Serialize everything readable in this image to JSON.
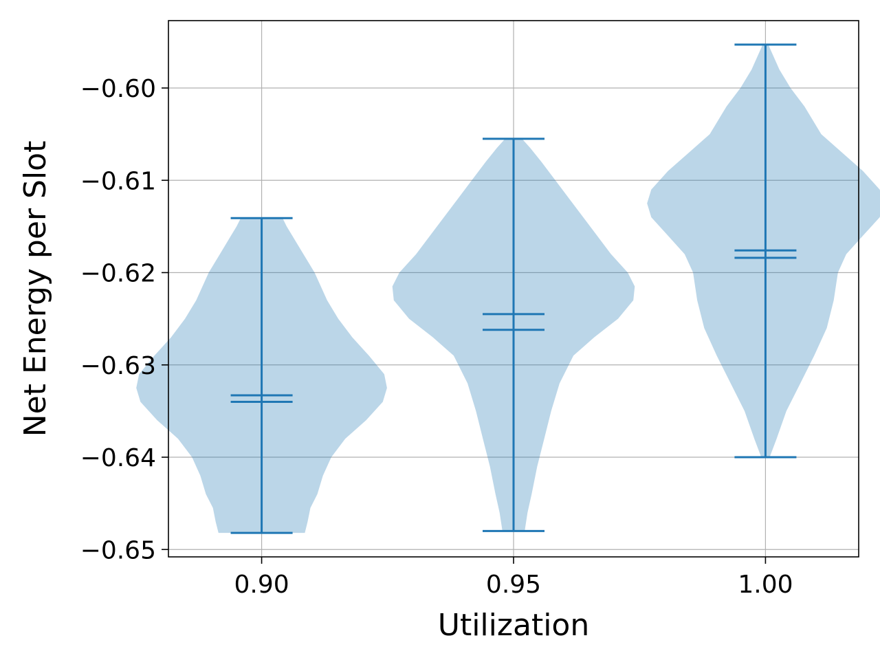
{
  "chart_data": {
    "type": "violin",
    "xlabel": "Utilization",
    "ylabel": "Net Energy per Slot",
    "xlim": [
      0.8815,
      1.0185
    ],
    "ylim": [
      -0.6508,
      -0.5927
    ],
    "grid": true,
    "accent_color": "#1f77b4",
    "body_color": "#1f77b4",
    "body_opacity": 0.3,
    "x_ticks": [
      {
        "value": 0.9,
        "label": "0.90"
      },
      {
        "value": 0.95,
        "label": "0.95"
      },
      {
        "value": 1.0,
        "label": "1.00"
      }
    ],
    "y_ticks": [
      {
        "value": -0.6,
        "label": "−0.60"
      },
      {
        "value": -0.61,
        "label": "−0.61"
      },
      {
        "value": -0.62,
        "label": "−0.62"
      },
      {
        "value": -0.63,
        "label": "−0.63"
      },
      {
        "value": -0.64,
        "label": "−0.64"
      },
      {
        "value": -0.65,
        "label": "−0.65"
      }
    ],
    "violins": [
      {
        "x": 0.9,
        "min": -0.6482,
        "max": -0.6141,
        "mean": -0.6333,
        "median": -0.634,
        "density": [
          [
            -0.6482,
            0.031
          ],
          [
            -0.647,
            0.033
          ],
          [
            -0.6455,
            0.035
          ],
          [
            -0.644,
            0.04
          ],
          [
            -0.642,
            0.044
          ],
          [
            -0.64,
            0.05
          ],
          [
            -0.638,
            0.06
          ],
          [
            -0.636,
            0.075
          ],
          [
            -0.634,
            0.087
          ],
          [
            -0.6325,
            0.09
          ],
          [
            -0.631,
            0.088
          ],
          [
            -0.629,
            0.077
          ],
          [
            -0.627,
            0.065
          ],
          [
            -0.625,
            0.055
          ],
          [
            -0.623,
            0.047
          ],
          [
            -0.62,
            0.038
          ],
          [
            -0.618,
            0.03
          ],
          [
            -0.616,
            0.022
          ],
          [
            -0.615,
            0.018
          ],
          [
            -0.6141,
            0.015
          ]
        ]
      },
      {
        "x": 0.95,
        "min": -0.648,
        "max": -0.6055,
        "mean": -0.6245,
        "median": -0.6262,
        "density": [
          [
            -0.648,
            0.008
          ],
          [
            -0.646,
            0.01
          ],
          [
            -0.644,
            0.013
          ],
          [
            -0.641,
            0.017
          ],
          [
            -0.638,
            0.022
          ],
          [
            -0.635,
            0.027
          ],
          [
            -0.632,
            0.033
          ],
          [
            -0.629,
            0.043
          ],
          [
            -0.627,
            0.058
          ],
          [
            -0.625,
            0.075
          ],
          [
            -0.623,
            0.086
          ],
          [
            -0.6215,
            0.087
          ],
          [
            -0.62,
            0.082
          ],
          [
            -0.618,
            0.07
          ],
          [
            -0.615,
            0.055
          ],
          [
            -0.612,
            0.04
          ],
          [
            -0.61,
            0.03
          ],
          [
            -0.608,
            0.02
          ],
          [
            -0.6065,
            0.012
          ],
          [
            -0.6055,
            0.006
          ]
        ]
      },
      {
        "x": 1.0,
        "min": -0.64,
        "max": -0.5953,
        "mean": -0.6176,
        "median": -0.6184,
        "density": [
          [
            -0.64,
            0.003
          ],
          [
            -0.638,
            0.008
          ],
          [
            -0.635,
            0.015
          ],
          [
            -0.632,
            0.025
          ],
          [
            -0.629,
            0.035
          ],
          [
            -0.626,
            0.044
          ],
          [
            -0.623,
            0.049
          ],
          [
            -0.62,
            0.052
          ],
          [
            -0.618,
            0.058
          ],
          [
            -0.616,
            0.07
          ],
          [
            -0.614,
            0.082
          ],
          [
            -0.6125,
            0.085
          ],
          [
            -0.611,
            0.082
          ],
          [
            -0.609,
            0.07
          ],
          [
            -0.607,
            0.055
          ],
          [
            -0.605,
            0.04
          ],
          [
            -0.602,
            0.028
          ],
          [
            -0.6,
            0.018
          ],
          [
            -0.598,
            0.01
          ],
          [
            -0.5953,
            0.002
          ]
        ]
      }
    ]
  }
}
